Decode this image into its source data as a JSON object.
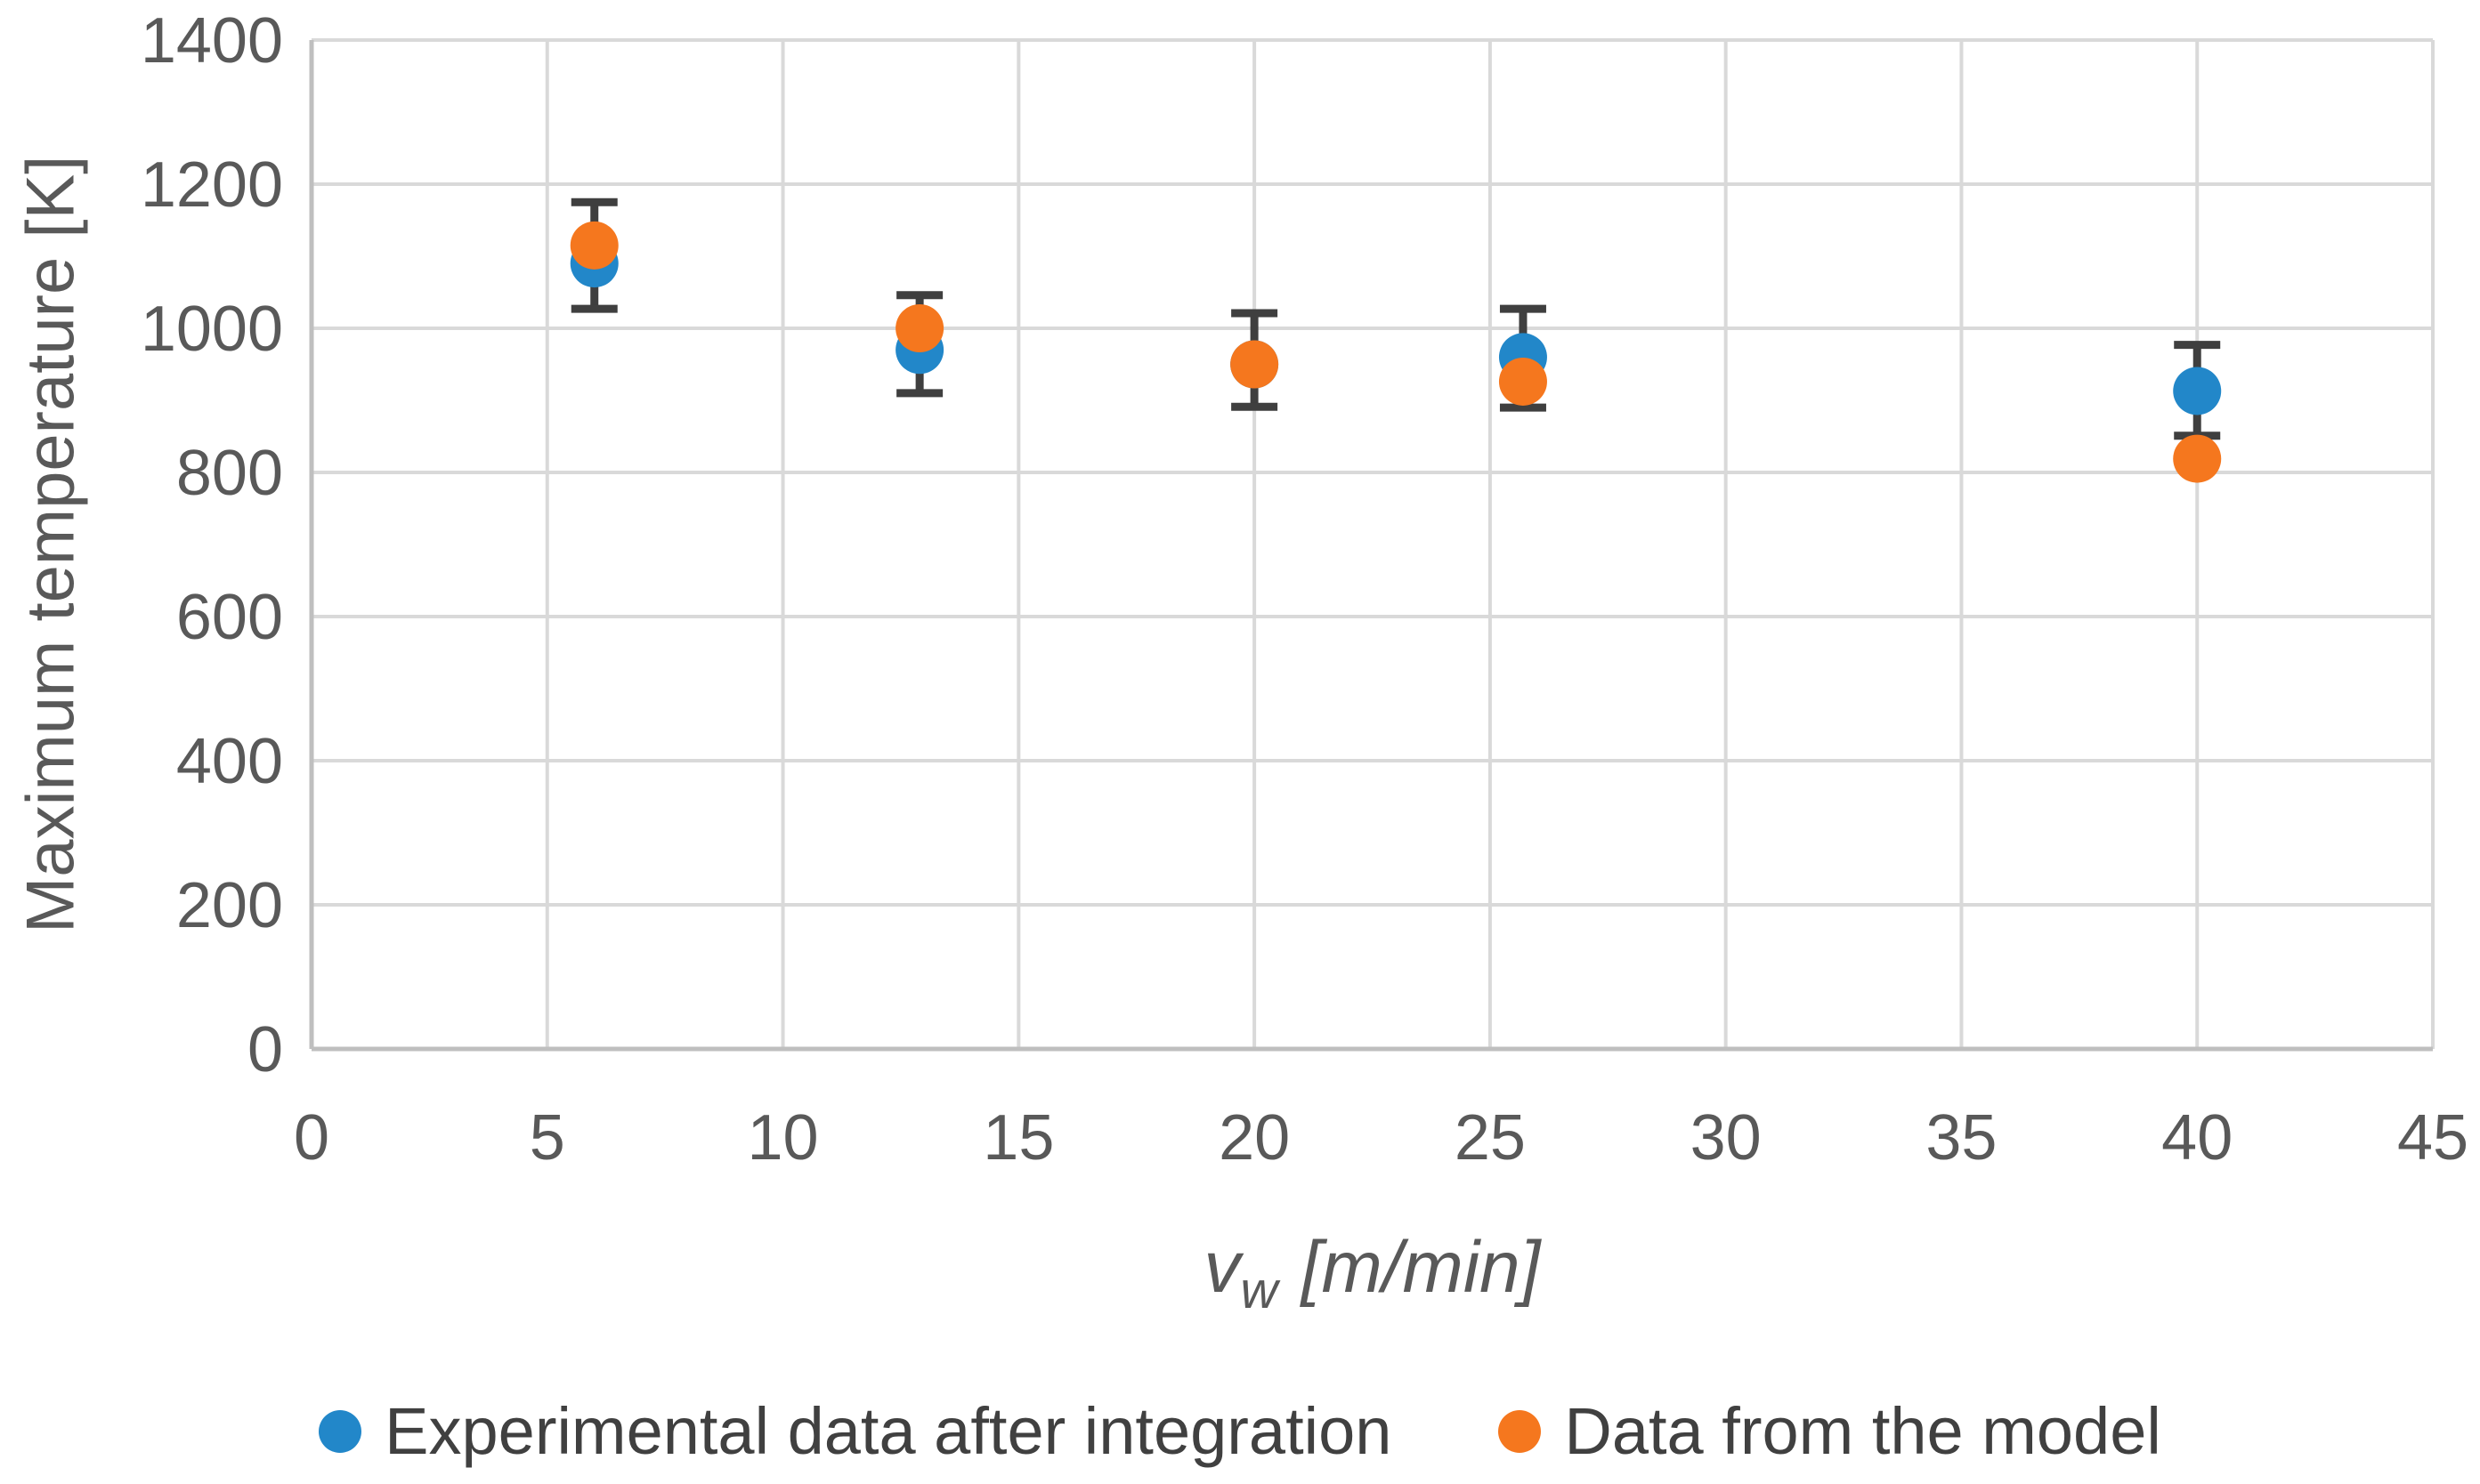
{
  "chart_data": {
    "type": "scatter",
    "title": "",
    "ylabel": "Maximum temperature [K]",
    "xlabel": "vw [m/min]",
    "xlabel_parts": {
      "variable": "v",
      "subscript": "w",
      "unit": "[m/min]"
    },
    "xlim": [
      0,
      45
    ],
    "ylim": [
      0,
      1400
    ],
    "xticks": [
      0,
      5,
      10,
      15,
      20,
      25,
      30,
      35,
      40,
      45
    ],
    "yticks": [
      0,
      200,
      400,
      600,
      800,
      1000,
      1200,
      1400
    ],
    "grid": true,
    "legend_position": "bottom",
    "series": [
      {
        "name": "Experimental data after integration",
        "color": "#2287C9",
        "x": [
          6,
          12.9,
          20,
          25.7,
          40
        ],
        "y": [
          1090,
          970,
          950,
          960,
          913
        ],
        "error_low": [
          1027,
          910,
          891,
          890,
          851
        ],
        "error_high": [
          1175,
          1046,
          1021,
          1027,
          977
        ]
      },
      {
        "name": "Data from the model",
        "color": "#F5771E",
        "x": [
          6,
          12.9,
          20,
          25.7,
          40
        ],
        "y": [
          1115,
          1000,
          950,
          926,
          819
        ]
      }
    ],
    "colors": {
      "gridline": "#D9D9D9",
      "axis_line": "#BFBFBF",
      "tick_label": "#595959",
      "error_bar": "#3F3F3F"
    }
  }
}
